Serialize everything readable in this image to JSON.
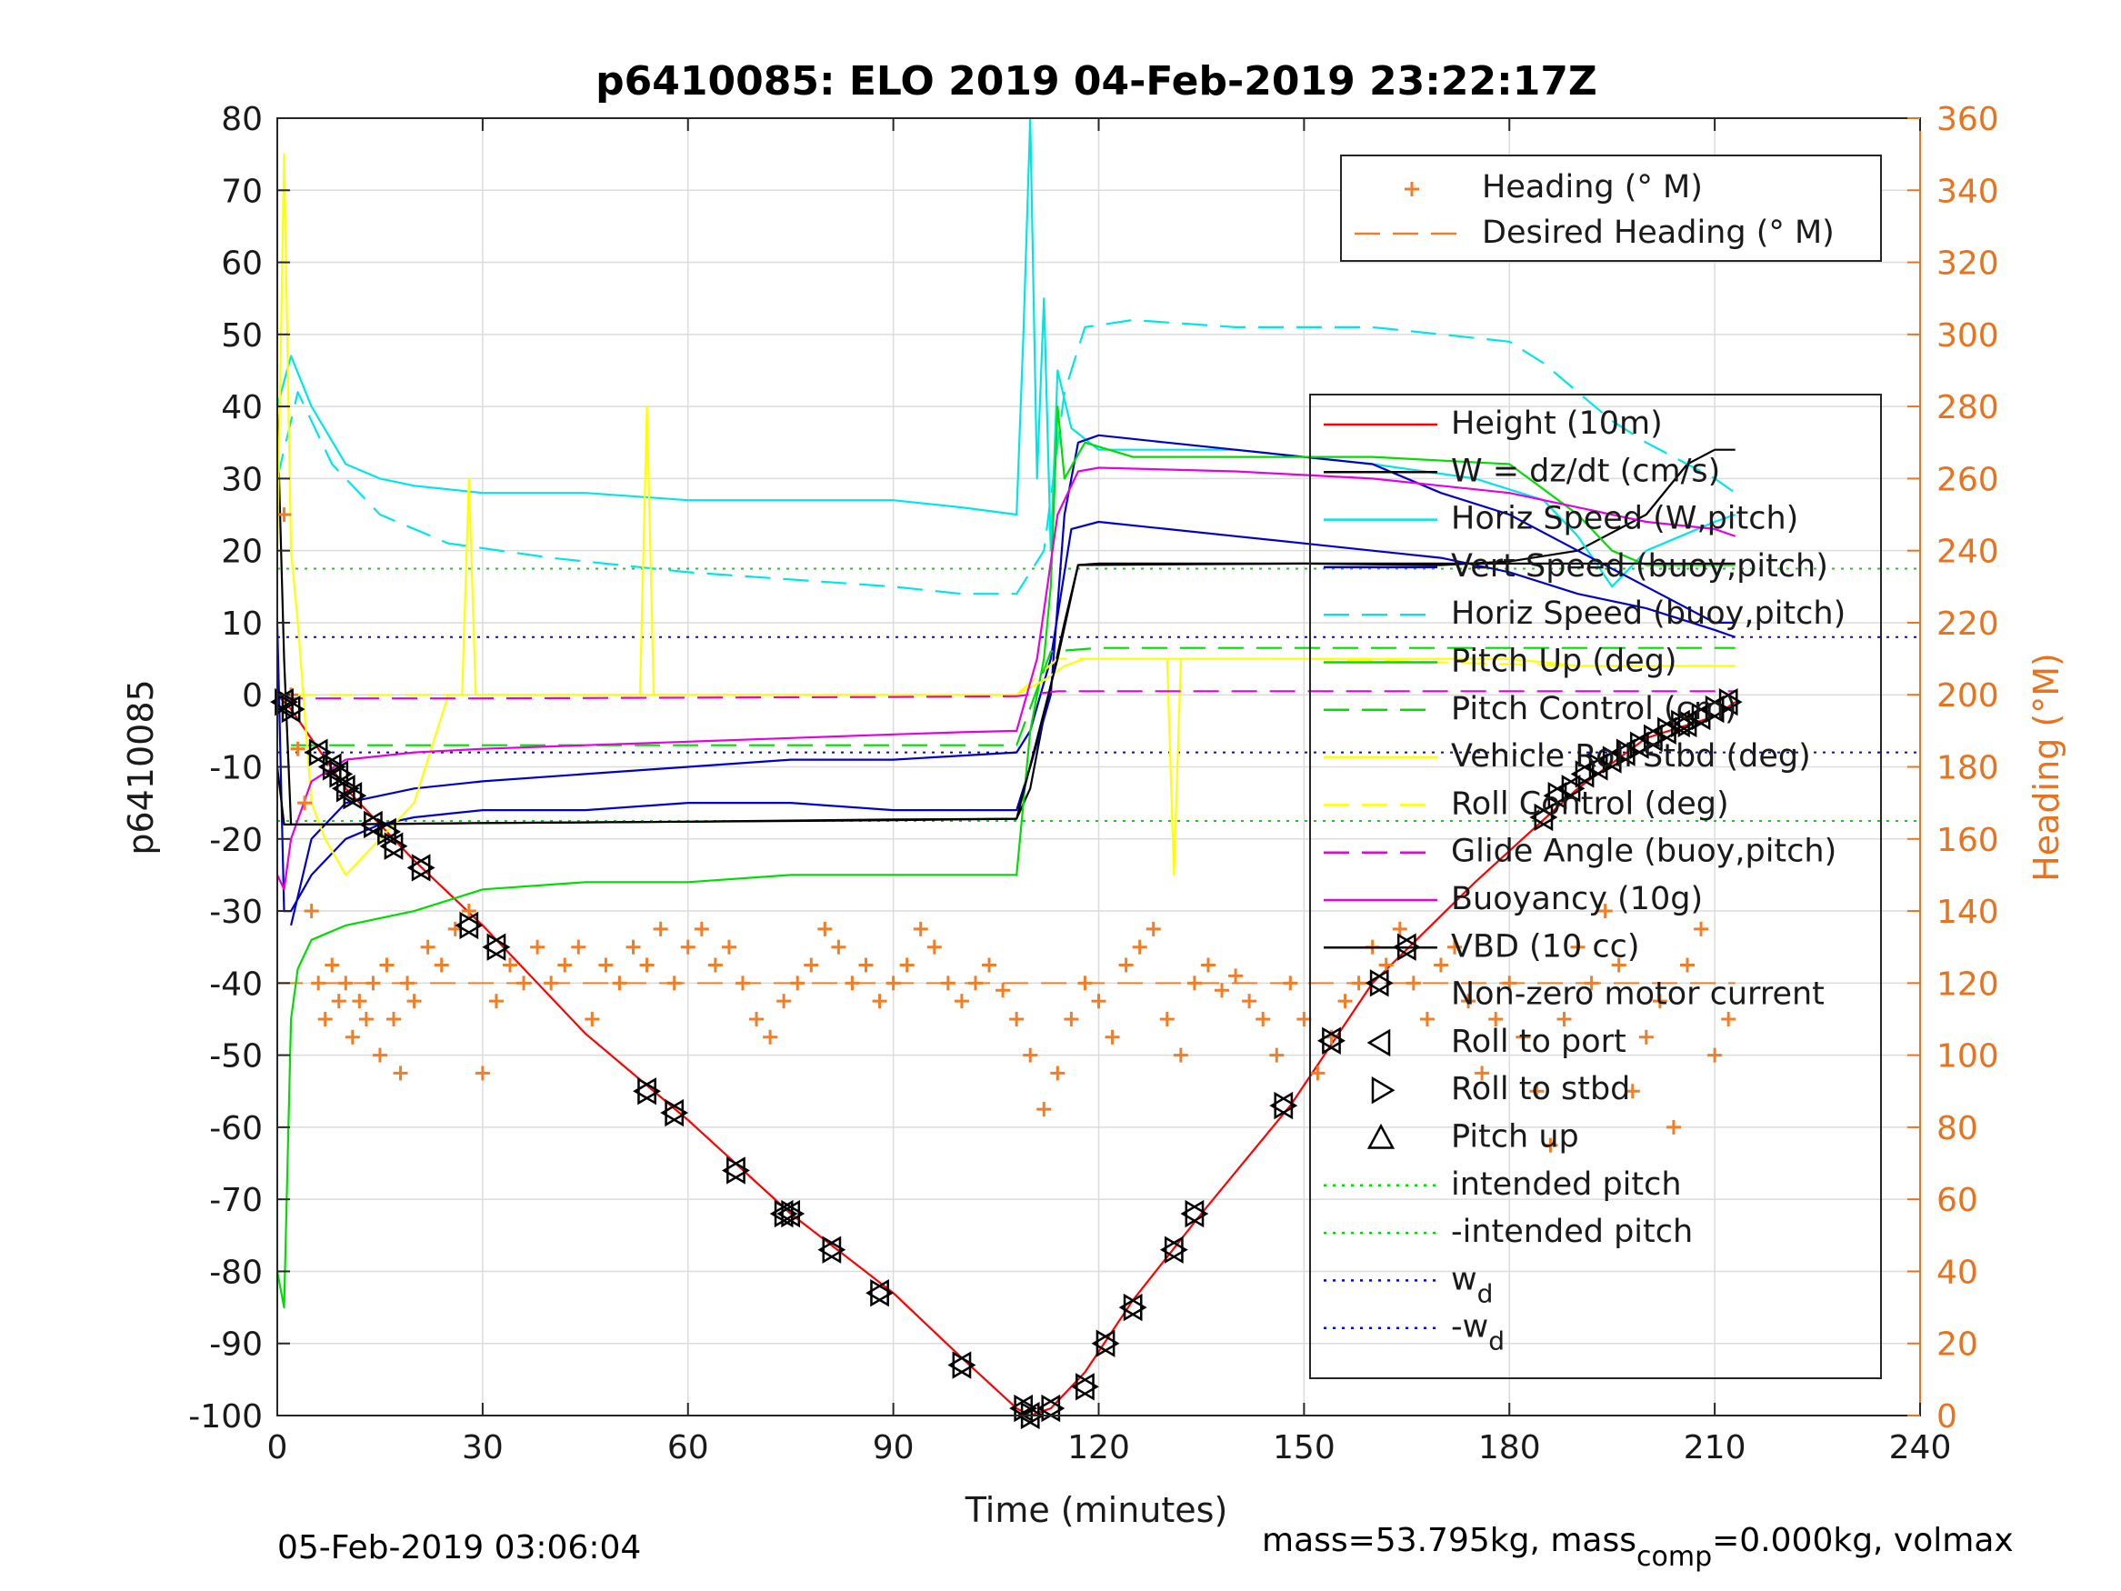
{
  "chart_data": {
    "type": "line",
    "title": "p6410085: ELO 2019 04-Feb-2019 23:22:17Z",
    "xlabel": "Time (minutes)",
    "ylabel": "p6410085",
    "y2label": "Heading (°M)",
    "xlim": [
      0,
      240
    ],
    "ylim": [
      -100,
      80
    ],
    "y2lim": [
      0,
      360
    ],
    "xticks": [
      "0",
      "30",
      "60",
      "90",
      "120",
      "150",
      "180",
      "210",
      "240"
    ],
    "yticks": [
      "80",
      "70",
      "60",
      "50",
      "40",
      "30",
      "20",
      "10",
      "0",
      "-10",
      "-20",
      "-30",
      "-40",
      "-50",
      "-60",
      "-70",
      "-80",
      "-90",
      "-100"
    ],
    "y2ticks": [
      "360",
      "340",
      "320",
      "300",
      "280",
      "260",
      "240",
      "220",
      "200",
      "180",
      "160",
      "140",
      "120",
      "100",
      "80",
      "60",
      "40",
      "20",
      "0"
    ],
    "grid": true,
    "legend_right_axis": [
      {
        "label": "Heading (° M)",
        "color": "#f07d28",
        "style": "plus"
      },
      {
        "label": "Desired Heading (° M)",
        "color": "#f07d28",
        "style": "dashed"
      }
    ],
    "legend_left_axis": [
      {
        "label": "Height (10m)",
        "color": "#ff0000",
        "style": "solid"
      },
      {
        "label": "W = dz/dt (cm/s)",
        "color": "#000000",
        "style": "solid"
      },
      {
        "label": "Horiz Speed (W,pitch)",
        "color": "#00e6e6",
        "style": "solid"
      },
      {
        "label": "Vert Speed (buoy,pitch)",
        "color": "#0000c8",
        "style": "solid"
      },
      {
        "label": "Horiz Speed (buoy,pitch)",
        "color": "#00e6e6",
        "style": "dashed"
      },
      {
        "label": "Pitch Up (deg)",
        "color": "#00dd00",
        "style": "solid"
      },
      {
        "label": "Pitch Control (cm)",
        "color": "#00dd00",
        "style": "dashed"
      },
      {
        "label": "Vehicle Roll Stbd (deg)",
        "color": "#ffff00",
        "style": "solid"
      },
      {
        "label": "Roll Control (deg)",
        "color": "#ffff00",
        "style": "dashed"
      },
      {
        "label": "Glide Angle (buoy,pitch)",
        "color": "#e600e6",
        "style": "dashed"
      },
      {
        "label": "Buoyancy (10g)",
        "color": "#e600e6",
        "style": "solid"
      },
      {
        "label": "VBD (10 cc)",
        "color": "#000000",
        "style": "solid"
      },
      {
        "label": "Non-zero motor current",
        "color": "#000000",
        "style": "none"
      },
      {
        "label": "Roll to port",
        "color": "#000000",
        "style": "tri-left"
      },
      {
        "label": "Roll to stbd",
        "color": "#000000",
        "style": "tri-right"
      },
      {
        "label": "Pitch up",
        "color": "#000000",
        "style": "tri-up"
      },
      {
        "label": "intended pitch",
        "color": "#00dd00",
        "style": "dotted"
      },
      {
        "label": "-intended pitch",
        "color": "#00dd00",
        "style": "dotted"
      },
      {
        "label": "w",
        "sub": "d",
        "color": "#0000ff",
        "style": "dotted"
      },
      {
        "label": "-w",
        "sub": "d",
        "color": "#0000ff",
        "style": "dotted"
      }
    ],
    "reference_lines": {
      "intended_pitch": 17.5,
      "wd": 8
    },
    "desired_heading": 120,
    "series": [
      {
        "name": "Height (10m)",
        "color": "#ff0000",
        "style": "solid",
        "x": [
          0,
          2,
          10,
          20,
          30,
          45,
          60,
          75,
          90,
          100,
          108,
          110,
          113,
          118,
          125,
          135,
          148,
          160,
          175,
          190,
          200,
          210,
          213
        ],
        "y": [
          0,
          -2,
          -13,
          -23,
          -32,
          -47,
          -59,
          -72,
          -83,
          -92,
          -99,
          -100,
          -99,
          -94,
          -84,
          -72,
          -57,
          -40,
          -26,
          -13,
          -6,
          -3,
          -1
        ]
      },
      {
        "name": "W = dz/dt (cm/s)",
        "color": "#000000",
        "style": "solid",
        "x": [
          0,
          1,
          2,
          10,
          30,
          60,
          90,
          108,
          110,
          112,
          115,
          117,
          120,
          150,
          170,
          180,
          190,
          200,
          206,
          210,
          213
        ],
        "y": [
          39,
          5,
          -18,
          -18,
          -17.8,
          -17.6,
          -17.3,
          -17.2,
          -13,
          -3,
          10,
          18,
          18.2,
          18.2,
          18,
          18.5,
          20,
          25,
          32,
          34,
          34
        ]
      },
      {
        "name": "Horiz Speed (W,pitch)",
        "color": "#00e6e6",
        "style": "solid",
        "x": [
          0,
          2,
          5,
          10,
          15,
          20,
          30,
          45,
          60,
          75,
          90,
          100,
          108,
          109,
          110,
          111,
          112,
          113,
          114,
          116,
          120,
          140,
          160,
          175,
          185,
          190,
          195,
          200,
          210,
          213
        ],
        "y": [
          40,
          47,
          40,
          32,
          30,
          29,
          28,
          28,
          27,
          27,
          27,
          26,
          25,
          50,
          80,
          30,
          55,
          20,
          45,
          37,
          34,
          34,
          32,
          30,
          27,
          22,
          15,
          20,
          24,
          25
        ]
      },
      {
        "name": "Vert Speed (buoy,pitch)",
        "color": "#0000c8",
        "style": "solid",
        "x": [
          0,
          1,
          2,
          5,
          10,
          15,
          20,
          30,
          45,
          60,
          75,
          90,
          100,
          108,
          110,
          113,
          115,
          117,
          120,
          130,
          140,
          150,
          160,
          170,
          180,
          190,
          200,
          210,
          213
        ],
        "y": [
          10,
          -30,
          -30,
          -25,
          -20,
          -18,
          -17,
          -16,
          -16,
          -15,
          -15,
          -16,
          -16,
          -16,
          -10,
          0,
          25,
          35,
          36,
          35,
          34,
          33,
          32,
          28,
          25,
          20,
          15,
          10,
          10
        ]
      },
      {
        "name": "Vert Speed (buoy,pitch) 2",
        "color": "#0000c8",
        "style": "solid",
        "x": [
          2,
          5,
          10,
          20,
          30,
          45,
          60,
          75,
          90,
          108,
          110,
          113,
          116,
          120,
          130,
          140,
          150,
          160,
          170,
          180,
          190,
          200,
          210,
          213
        ],
        "y": [
          -32,
          -20,
          -15,
          -13,
          -12,
          -11,
          -10,
          -9,
          -9,
          -8,
          -5,
          5,
          23,
          24,
          23,
          22,
          21,
          20,
          19,
          17,
          14,
          12,
          9,
          8
        ]
      },
      {
        "name": "Horiz Speed (buoy,pitch)",
        "color": "#00e6e6",
        "style": "dashed",
        "x": [
          0,
          3,
          8,
          15,
          25,
          40,
          60,
          75,
          90,
          100,
          108,
          112,
          115,
          118,
          125,
          140,
          160,
          170,
          180,
          185,
          190,
          195,
          200,
          210,
          213
        ],
        "y": [
          30,
          42,
          32,
          25,
          21,
          19,
          17,
          16,
          15,
          14,
          14,
          20,
          42,
          51,
          52,
          51,
          51,
          50,
          49,
          46,
          42,
          38,
          35,
          30,
          28
        ]
      },
      {
        "name": "Pitch Up (deg)",
        "color": "#00dd00",
        "style": "solid",
        "x": [
          0,
          1,
          2,
          3,
          5,
          10,
          20,
          30,
          45,
          60,
          75,
          90,
          100,
          108,
          110,
          112,
          113,
          114,
          115,
          118,
          125,
          140,
          160,
          180,
          190,
          195,
          200,
          210,
          213
        ],
        "y": [
          -80,
          -85,
          -45,
          -38,
          -34,
          -32,
          -30,
          -27,
          -26,
          -26,
          -25,
          -25,
          -25,
          -25,
          -5,
          5,
          15,
          40,
          30,
          35,
          33,
          33,
          33,
          32,
          25,
          20,
          18,
          18,
          18
        ]
      },
      {
        "name": "Pitch Control (cm)",
        "color": "#00dd00",
        "style": "dashed",
        "x": [
          2,
          10,
          30,
          60,
          90,
          108,
          113,
          120,
          150,
          180,
          213
        ],
        "y": [
          -7,
          -7,
          -7,
          -7,
          -7,
          -7,
          6,
          6.5,
          6.5,
          6.5,
          6.5
        ]
      },
      {
        "name": "Vehicle Roll Stbd (deg)",
        "color": "#ffff00",
        "style": "solid",
        "x": [
          0,
          1,
          2,
          3,
          5,
          7,
          10,
          15,
          20,
          25,
          27,
          28,
          29,
          30,
          45,
          53,
          54,
          55,
          60,
          75,
          90,
          100,
          108,
          112,
          115,
          118,
          125,
          130,
          131,
          132,
          140,
          150,
          160,
          170,
          180,
          190,
          200,
          205,
          210,
          213
        ],
        "y": [
          20,
          75,
          20,
          10,
          -15,
          -20,
          -25,
          -20,
          -15,
          0,
          0,
          30,
          0,
          0,
          0,
          0,
          40,
          0,
          0,
          0,
          0,
          0,
          0,
          2,
          4,
          5,
          5,
          5,
          -25,
          5,
          5,
          5,
          5,
          5,
          5,
          4,
          4,
          4,
          4,
          4
        ]
      },
      {
        "name": "Roll Control (deg)",
        "color": "#ffff00",
        "style": "dashed",
        "x": [
          2,
          20,
          60,
          108,
          114,
          150,
          190,
          213
        ],
        "y": [
          0,
          0,
          0,
          0,
          5,
          5,
          4,
          4
        ]
      },
      {
        "name": "Glide Angle (buoy,pitch)",
        "color": "#e600e6",
        "style": "dashed",
        "x": [
          0,
          30,
          60,
          90,
          108,
          114,
          150,
          180,
          213
        ],
        "y": [
          -0.5,
          -0.5,
          -0.4,
          -0.3,
          -0.2,
          0.5,
          0.5,
          0.5,
          0.5
        ]
      },
      {
        "name": "Buoyancy (10g)",
        "color": "#e600e6",
        "style": "solid",
        "x": [
          0,
          1,
          2,
          5,
          10,
          15,
          20,
          30,
          45,
          60,
          75,
          90,
          100,
          108,
          111,
          114,
          117,
          120,
          140,
          160,
          170,
          180,
          190,
          200,
          210,
          213
        ],
        "y": [
          -25,
          -27,
          -20,
          -12,
          -9,
          -8.5,
          -8,
          -7.5,
          -7,
          -6.5,
          -6,
          -5.5,
          -5.2,
          -5,
          5,
          25,
          31,
          31.5,
          31,
          30,
          29,
          28,
          26,
          24,
          23,
          22
        ]
      },
      {
        "name": "VBD (10 cc)",
        "color": "#000000",
        "style": "solid",
        "x": [
          0,
          1,
          2,
          5,
          30,
          60,
          90,
          108,
          114,
          117,
          150,
          175,
          213
        ],
        "y": [
          -10,
          -18,
          -18,
          -18,
          -17.8,
          -17.6,
          -17.4,
          -17.2,
          5,
          18,
          18.2,
          18.2,
          18.2
        ]
      }
    ],
    "heading_points": {
      "x": [
        1,
        2,
        3,
        4,
        5,
        6,
        7,
        8,
        9,
        10,
        11,
        12,
        13,
        14,
        15,
        16,
        17,
        18,
        19,
        20,
        22,
        24,
        26,
        28,
        30,
        32,
        34,
        36,
        38,
        40,
        42,
        44,
        46,
        48,
        50,
        52,
        54,
        56,
        58,
        60,
        62,
        64,
        66,
        68,
        70,
        72,
        74,
        76,
        78,
        80,
        82,
        84,
        86,
        88,
        90,
        92,
        94,
        96,
        98,
        100,
        102,
        104,
        106,
        108,
        110,
        112,
        114,
        116,
        118,
        120,
        122,
        124,
        126,
        128,
        130,
        132,
        134,
        136,
        138,
        140,
        142,
        144,
        146,
        148,
        150,
        152,
        154,
        156,
        158,
        160,
        162,
        164,
        166,
        168,
        170,
        172,
        174,
        176,
        178,
        180,
        182,
        184,
        186,
        188,
        190,
        192,
        194,
        196,
        198,
        200,
        202,
        204,
        206,
        208,
        210,
        212
      ],
      "y": [
        250,
        200,
        185,
        170,
        140,
        120,
        110,
        125,
        115,
        120,
        105,
        115,
        110,
        120,
        100,
        125,
        110,
        95,
        120,
        115,
        130,
        125,
        135,
        140,
        95,
        115,
        125,
        120,
        130,
        120,
        125,
        130,
        110,
        125,
        120,
        130,
        125,
        135,
        120,
        130,
        135,
        125,
        130,
        120,
        110,
        105,
        115,
        120,
        125,
        135,
        130,
        120,
        125,
        115,
        120,
        125,
        135,
        130,
        120,
        115,
        120,
        125,
        118,
        110,
        100,
        85,
        95,
        110,
        120,
        115,
        105,
        125,
        130,
        135,
        110,
        100,
        120,
        125,
        118,
        122,
        115,
        110,
        100,
        120,
        110,
        95,
        105,
        115,
        120,
        130,
        125,
        135,
        120,
        110,
        125,
        130,
        115,
        95,
        110,
        120,
        105,
        90,
        75,
        110,
        130,
        120,
        140,
        125,
        90,
        105,
        115,
        80,
        125,
        135,
        100,
        110
      ]
    },
    "motor_markers_x": [
      1,
      2,
      6,
      8,
      9,
      10,
      11,
      14,
      16,
      17,
      21,
      28,
      32,
      54,
      58,
      67,
      74,
      75,
      81,
      88,
      100,
      109,
      110,
      113,
      118,
      121,
      125,
      131,
      134,
      147,
      154,
      161,
      165,
      185,
      187,
      189,
      191,
      193,
      195,
      197,
      199,
      201,
      203,
      205,
      206,
      208,
      210,
      212
    ],
    "motor_markers_y": [
      -1,
      -2,
      -8,
      -10,
      -11,
      -13,
      -14,
      -18,
      -19,
      -21,
      -24,
      -32,
      -35,
      -55,
      -58,
      -66,
      -72,
      -72,
      -77,
      -83,
      -93,
      -99,
      -100,
      -99,
      -96,
      -90,
      -85,
      -77,
      -72,
      -57,
      -48,
      -40,
      -35,
      -17,
      -14,
      -13,
      -11,
      -10,
      -9,
      -8,
      -7,
      -6,
      -5,
      -4,
      -4,
      -3,
      -2,
      -1
    ]
  },
  "footer": {
    "left": "05-Feb-2019 03:06:04",
    "right": "mass=53.795kg, mass",
    "right_sub": "comp",
    "right_tail": "=0.000kg, volmax"
  }
}
